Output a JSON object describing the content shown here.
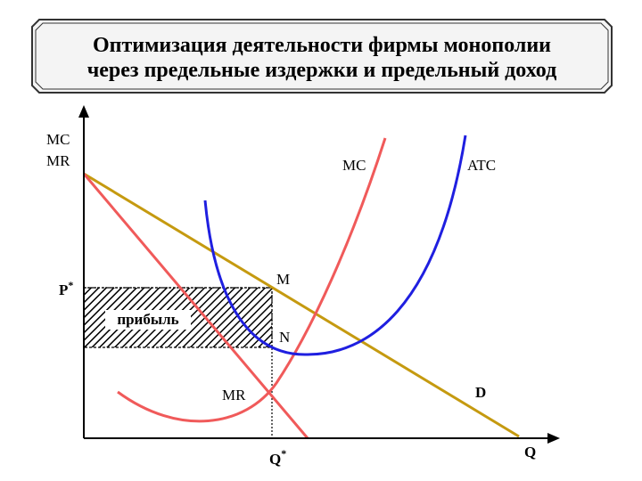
{
  "title": {
    "line1": "Оптимизация деятельности фирмы монополии",
    "line2": "через предельные издержки и предельный доход"
  },
  "axes": {
    "y_label_line1": "MC",
    "y_label_line2": "MR",
    "x_label": "Q"
  },
  "labels": {
    "p_star": "P",
    "p_star_sup": "*",
    "q_star": "Q",
    "q_star_sup": "*",
    "profit": "прибыль",
    "mc": "MC",
    "atc": "ATC",
    "mr": "MR",
    "d": "D",
    "m": "M",
    "n": "N"
  },
  "colors": {
    "mc": "#f05a5a",
    "mr": "#f05a5a",
    "atc": "#1f1fe0",
    "d": "#c59a10",
    "axes": "#000000",
    "frame": "#333333",
    "title_bg": "#f4f4f4"
  }
}
